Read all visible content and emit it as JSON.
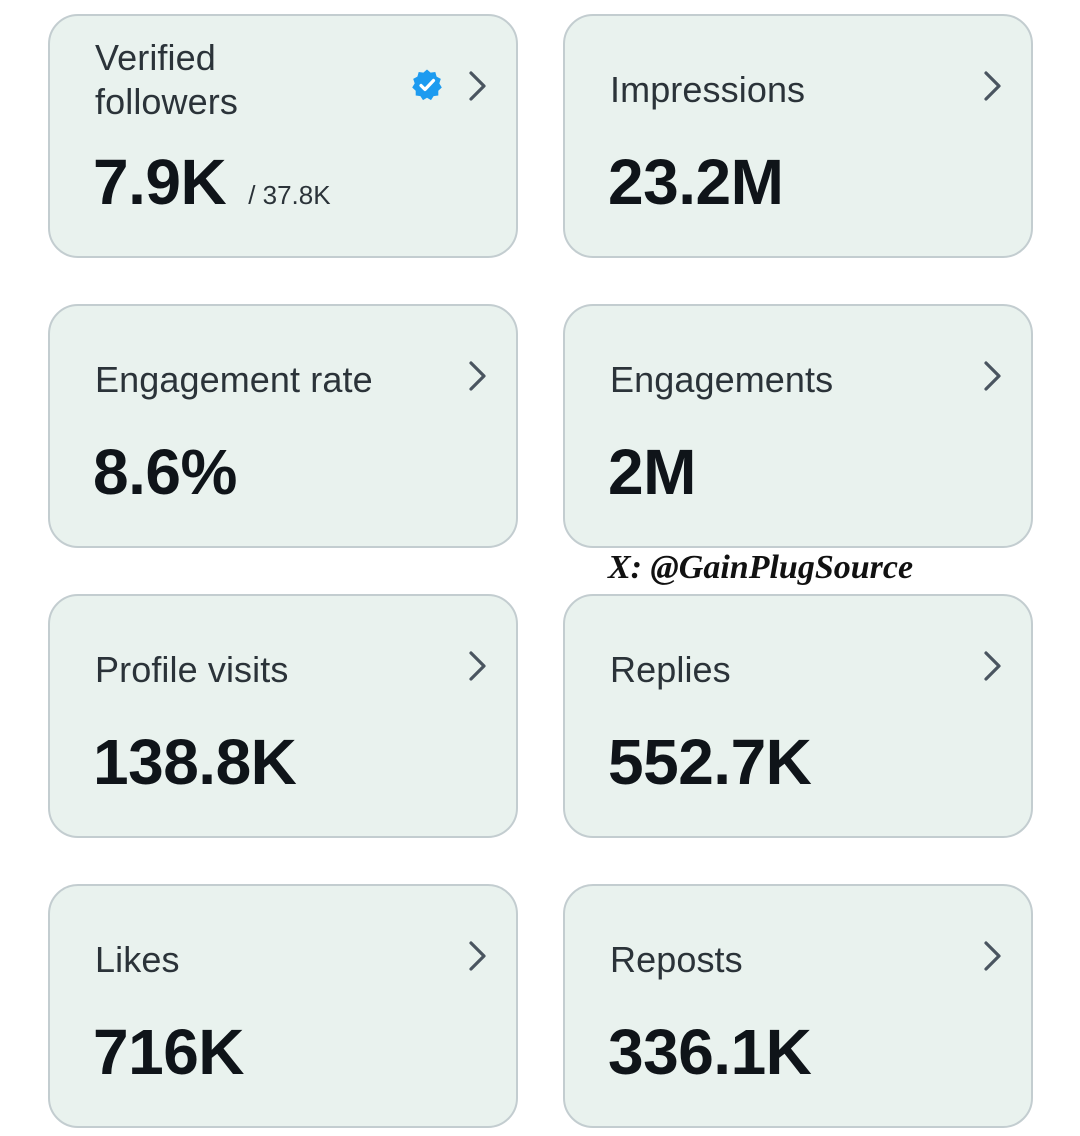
{
  "watermark": "X: @GainPlugSource",
  "colors": {
    "card_background": "#e9f2ee",
    "card_border": "#c3cdd0",
    "verified_badge": "#1d9bf0",
    "value_text": "#0f1419",
    "label_text": "#2b3339"
  },
  "icons": {
    "chevron": "chevron-right-icon",
    "verified": "verified-badge-icon"
  },
  "cards": [
    {
      "label": "Verified followers",
      "value": "7.9K",
      "sub_value": "/ 37.8K"
    },
    {
      "label": "Impressions",
      "value": "23.2M"
    },
    {
      "label": "Engagement rate",
      "value": "8.6%"
    },
    {
      "label": "Engagements",
      "value": "2M"
    },
    {
      "label": "Profile visits",
      "value": "138.8K"
    },
    {
      "label": "Replies",
      "value": "552.7K"
    },
    {
      "label": "Likes",
      "value": "716K"
    },
    {
      "label": "Reposts",
      "value": "336.1K"
    }
  ]
}
